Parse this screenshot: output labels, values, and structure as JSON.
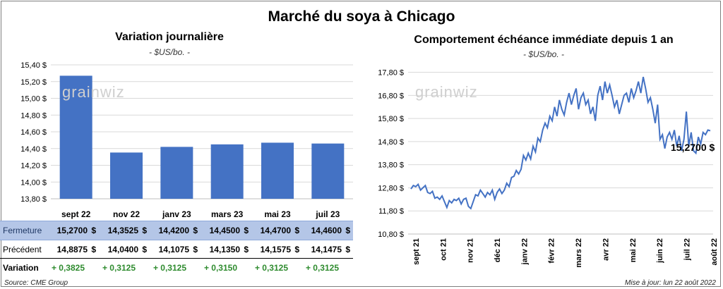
{
  "main_title": "Marché du soya à Chicago",
  "left": {
    "title": "Variation journalière",
    "unit": "- $US/bo. -",
    "watermark": "grainwiz",
    "table": {
      "rows": [
        {
          "label": "Fermeture",
          "values": [
            "15,2700",
            "14,3525",
            "14,4200",
            "14,4500",
            "14,4700",
            "14,4600"
          ]
        },
        {
          "label": "Précédent",
          "values": [
            "14,8875",
            "14,0400",
            "14,1075",
            "14,1350",
            "14,1575",
            "14,1475"
          ]
        },
        {
          "label": "Variation",
          "values": [
            "+ 0,3825",
            "+ 0,3125",
            "+ 0,3125",
            "+ 0,3150",
            "+ 0,3125",
            "+ 0,3125"
          ]
        }
      ],
      "currency": "$"
    }
  },
  "right": {
    "title": "Comportement  échéance immédiate depuis 1 an",
    "unit": "- $US/bo. -",
    "watermark": "grainwiz",
    "last_label": "15,2700 $"
  },
  "footer": {
    "source": "Source: CME Group",
    "updated": "Mise à jour: lun 22 août 2022"
  },
  "colors": {
    "bar": "#4472c4",
    "line": "#4472c4",
    "grid": "#d9d9d9",
    "positive": "#2e8b2e",
    "highlight_row": "#b4c6e7"
  },
  "chart_data": [
    {
      "type": "bar",
      "title": "Variation journalière",
      "subtitle": "- $US/bo. -",
      "categories": [
        "sept 22",
        "nov 22",
        "janv 23",
        "mars 23",
        "mai 23",
        "juil 23"
      ],
      "values": [
        15.27,
        14.3525,
        14.42,
        14.45,
        14.47,
        14.46
      ],
      "ylim": [
        13.8,
        15.4
      ],
      "yticks": [
        13.8,
        14.0,
        14.2,
        14.4,
        14.6,
        14.8,
        15.0,
        15.2,
        15.4
      ],
      "ytick_labels": [
        "13,80 $",
        "14,00 $",
        "14,20 $",
        "14,40 $",
        "14,60 $",
        "14,80 $",
        "15,00 $",
        "15,20 $",
        "15,40 $"
      ],
      "grid": true,
      "legend": "none"
    },
    {
      "type": "line",
      "title": "Comportement  échéance immédiate depuis 1 an",
      "subtitle": "- $US/bo. -",
      "ylim": [
        10.8,
        18.0
      ],
      "yticks": [
        10.8,
        11.8,
        12.8,
        13.8,
        14.8,
        15.8,
        16.8,
        17.8
      ],
      "ytick_labels": [
        "10,80 $",
        "11,80 $",
        "12,80 $",
        "13,80 $",
        "14,80 $",
        "15,80 $",
        "16,80 $",
        "17,80 $"
      ],
      "xtick_labels": [
        "sept 21",
        "oct 21",
        "nov 21",
        "déc 21",
        "janv 22",
        "févr 22",
        "mars 22",
        "avr 22",
        "mai 22",
        "juin 22",
        "juil 22",
        "août 22"
      ],
      "series": [
        {
          "values": [
            12.75,
            12.9,
            12.85,
            12.95,
            12.7,
            12.8,
            12.9,
            12.6,
            12.55,
            12.65,
            12.35,
            12.4,
            12.3,
            12.45,
            12.2,
            11.95,
            12.25,
            12.15,
            12.3,
            12.25,
            12.35,
            12.1,
            12.3,
            12.35,
            12.0,
            11.9,
            12.2,
            12.5,
            12.45,
            12.7,
            12.55,
            12.4,
            12.6,
            12.5,
            12.7,
            12.3,
            12.6,
            12.75,
            12.55,
            12.7,
            13.0,
            12.85,
            13.25,
            13.3,
            13.55,
            13.4,
            13.6,
            14.2,
            14.0,
            14.3,
            14.05,
            14.6,
            14.35,
            14.95,
            14.8,
            15.3,
            15.6,
            15.4,
            15.9,
            15.7,
            16.3,
            15.9,
            16.6,
            16.2,
            15.95,
            16.5,
            16.9,
            16.4,
            16.8,
            17.1,
            16.2,
            16.7,
            16.9,
            16.4,
            16.6,
            16.0,
            16.3,
            15.7,
            16.8,
            17.2,
            16.6,
            17.4,
            16.9,
            17.25,
            16.8,
            16.3,
            16.6,
            16.0,
            16.4,
            16.8,
            16.9,
            16.5,
            17.1,
            16.7,
            17.0,
            17.4,
            16.9,
            17.6,
            17.1,
            16.5,
            16.7,
            16.2,
            15.6,
            16.4,
            14.9,
            15.1,
            14.5,
            15.0,
            15.2,
            14.9,
            15.3,
            14.6,
            15.05,
            14.4,
            14.9,
            16.1,
            14.6,
            15.2,
            14.4,
            14.3,
            15.0,
            14.7,
            15.2,
            15.1,
            15.3,
            15.27
          ]
        }
      ],
      "last_value": 15.27,
      "grid": true,
      "legend": "none"
    }
  ]
}
